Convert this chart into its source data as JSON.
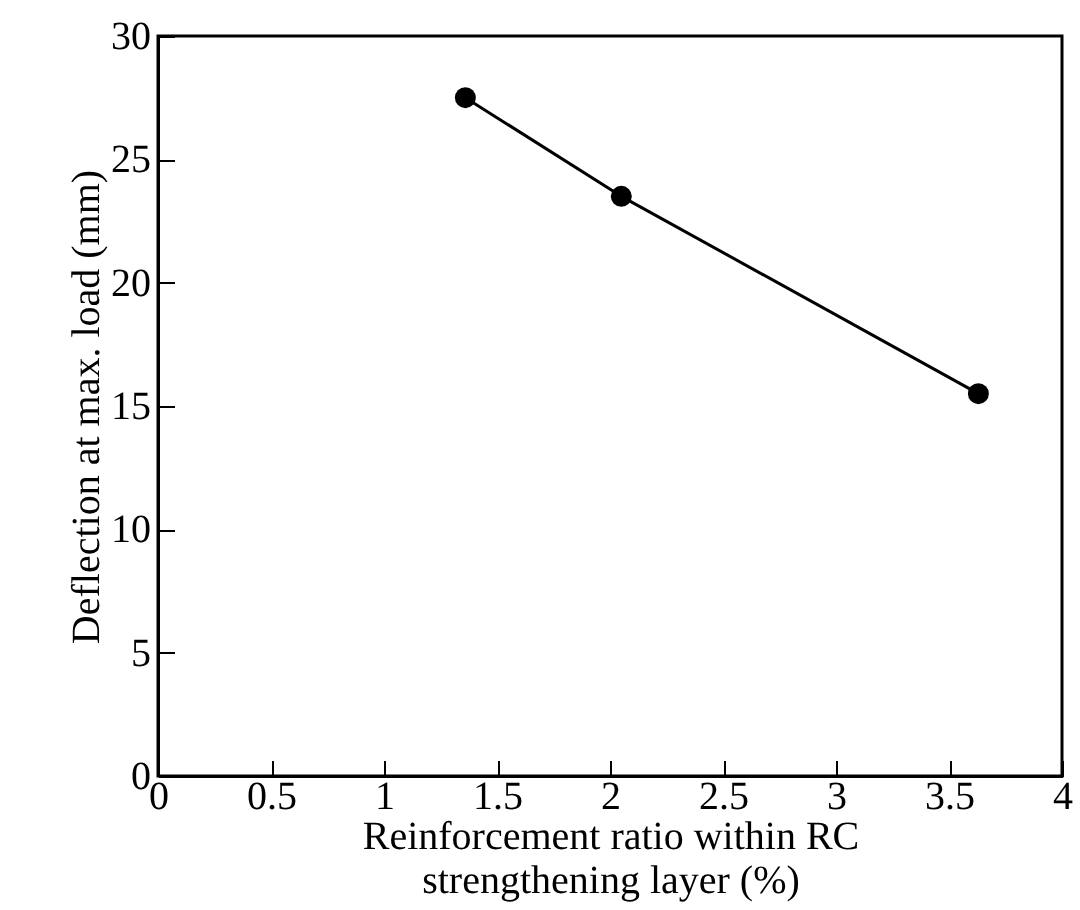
{
  "chart_data": {
    "type": "line",
    "xlabel": "Reinforcement ratio within RC\nstrengthening layer (%)",
    "ylabel": "Deflection at max. load (mm)",
    "x": [
      1.36,
      2.05,
      3.63
    ],
    "series": [
      {
        "color": "#000000",
        "values": [
          27.5,
          23.5,
          15.5
        ]
      }
    ],
    "xlim": [
      0,
      4
    ],
    "xticks": [
      0,
      0.5,
      1,
      1.5,
      2,
      2.5,
      3,
      3.5,
      4
    ],
    "ylim": [
      0,
      30
    ],
    "yticks": [
      0,
      5,
      10,
      15,
      20,
      25,
      30
    ],
    "marker": "circle",
    "line_style": "solid",
    "grid": false
  }
}
